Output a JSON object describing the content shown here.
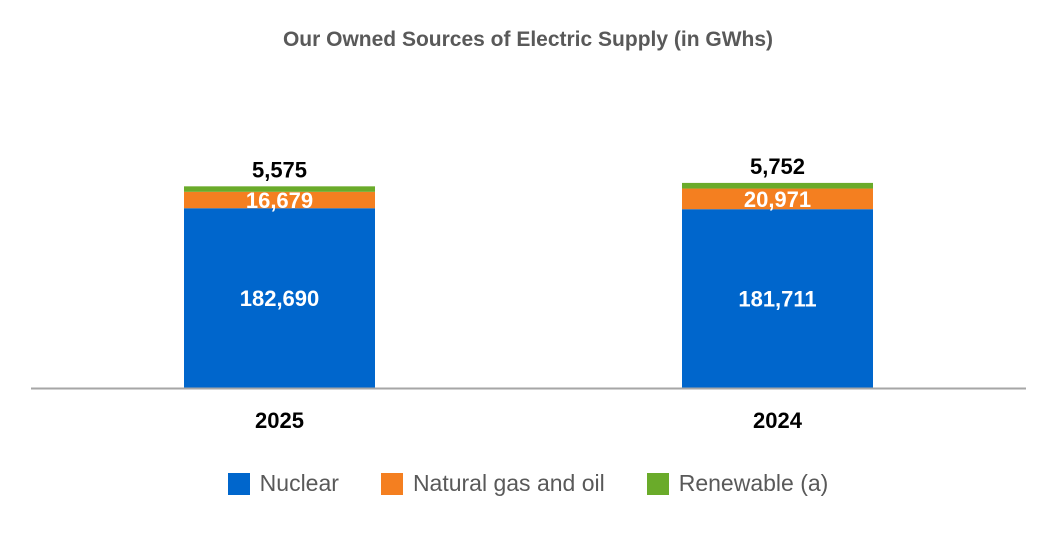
{
  "chart_data": {
    "type": "bar",
    "stacked": true,
    "title": "Our Owned Sources of Electric Supply (in GWhs)",
    "categories": [
      "2025",
      "2024"
    ],
    "series": [
      {
        "name": "Nuclear",
        "values": [
          182690,
          181711
        ],
        "labels": [
          "182,690",
          "181,711"
        ],
        "color": "#0066CC"
      },
      {
        "name": "Natural gas and oil",
        "values": [
          16679,
          20971
        ],
        "labels": [
          "16,679",
          "20,971"
        ],
        "color": "#F47F20"
      },
      {
        "name": "Renewable (a)",
        "values": [
          5575,
          5752
        ],
        "labels": [
          "5,575",
          "5,752"
        ],
        "color": "#6AAB2A"
      }
    ],
    "ylim": [
      0,
      250000
    ],
    "grid": false,
    "legend_position": "bottom",
    "axis_color": "#A6A6A6"
  }
}
